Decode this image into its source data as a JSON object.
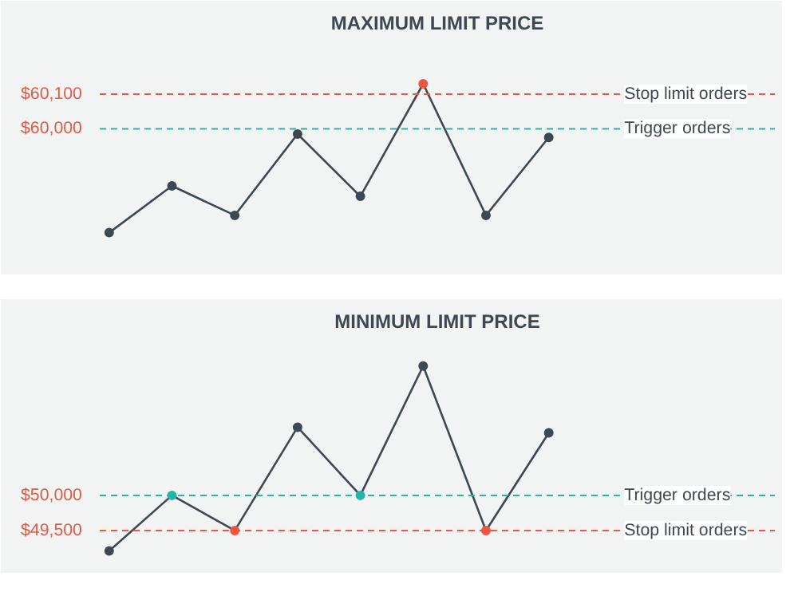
{
  "chart_data": [
    {
      "type": "line",
      "title": "MAXIMUM LIMIT PRICE",
      "categories": [
        null,
        null,
        null,
        null,
        null,
        null,
        null,
        null
      ],
      "series": [
        {
          "color": "#3d4852",
          "values": [
            59700,
            59835,
            59750,
            59985,
            59805,
            60130,
            59750,
            59975
          ],
          "colors": [
            "#3d4852",
            "#3d4852",
            "#3d4852",
            "#3d4852",
            "#3d4852",
            "#f0553f",
            "#3d4852",
            "#3d4852"
          ]
        }
      ],
      "ylim": [
        59600,
        60250
      ],
      "yticks": [
        {
          "value": 60000,
          "label": "$60,000"
        },
        {
          "value": 60100,
          "label": "$60,100"
        }
      ],
      "ref_lines": [
        {
          "axis": "y",
          "value": 60100,
          "label": "Stop limit orders",
          "color": "#f0553f",
          "line_style": "dashed"
        },
        {
          "axis": "y",
          "value": 60000,
          "label": "Trigger orders",
          "color": "#22b5a8",
          "line_style": "dashed"
        }
      ],
      "marker": "circle",
      "tick_labels": "y",
      "grid": false
    },
    {
      "type": "line",
      "title": "MINIMUM LIMIT PRICE",
      "categories": [
        null,
        null,
        null,
        null,
        null,
        null,
        null,
        null
      ],
      "series": [
        {
          "color": "#3d4852",
          "values": [
            49210,
            50000,
            49500,
            50970,
            50000,
            51840,
            49500,
            50890
          ],
          "colors": [
            "#3d4852",
            "#22b5a8",
            "#f0553f",
            "#3d4852",
            "#22b5a8",
            "#3d4852",
            "#f0553f",
            "#3d4852"
          ]
        }
      ],
      "ylim": [
        49000,
        52200
      ],
      "yticks": [
        {
          "value": 49500,
          "label": "$49,500"
        },
        {
          "value": 50000,
          "label": "$50,000"
        }
      ],
      "ref_lines": [
        {
          "axis": "y",
          "value": 50000,
          "label": "Trigger orders",
          "color": "#22b5a8",
          "line_style": "dashed"
        },
        {
          "axis": "y",
          "value": 49500,
          "label": "Stop limit orders",
          "color": "#f0553f",
          "line_style": "dashed"
        }
      ],
      "marker": "circle",
      "tick_labels": "y",
      "grid": false
    }
  ]
}
